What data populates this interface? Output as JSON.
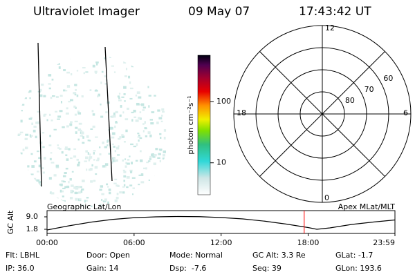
{
  "header": {
    "instrument": "Ultraviolet Imager",
    "date": "09 May 07",
    "time": "17:43:42 UT"
  },
  "colorbar": {
    "label": "photon cm⁻²s⁻¹",
    "scale": "log",
    "ylim": [
      3,
      575
    ],
    "yticks": [
      10,
      100
    ]
  },
  "polar": {
    "lat_range": [
      50,
      90
    ],
    "lat_rings": [
      60,
      70,
      80
    ],
    "lat_labels": [
      "60",
      "70",
      "80"
    ],
    "mlt_labels": [
      "12",
      "18",
      "6",
      "0"
    ]
  },
  "chart_data": {
    "type": "line",
    "title_left": "Geographic Lat/Lon",
    "title_right": "Apex MLat/MLT",
    "ylabel": "GC Alt",
    "x": [
      0,
      1.5,
      3,
      4.5,
      6,
      7.5,
      9,
      10.5,
      12,
      13.5,
      15,
      16.5,
      18,
      18.6,
      19.5,
      21,
      22.5,
      23.983
    ],
    "values": [
      1.4,
      3.8,
      5.9,
      7.5,
      8.5,
      9.0,
      9.2,
      9.1,
      8.6,
      7.8,
      6.5,
      4.8,
      2.8,
      1.8,
      2.6,
      4.6,
      6.0,
      7.2
    ],
    "color": "#000000",
    "xlim": [
      0,
      23.983
    ],
    "xticks": [
      {
        "value": 0,
        "label": "00:00"
      },
      {
        "value": 6,
        "label": "06:00"
      },
      {
        "value": 12,
        "label": "12:00"
      },
      {
        "value": 18,
        "label": "18:00"
      },
      {
        "value": 23.983,
        "label": "23:59"
      }
    ],
    "ylim": [
      -0.6,
      12.6
    ],
    "yticks": [
      1.8,
      {
        "value": 9,
        "label": "9.0"
      }
    ],
    "marker_x": 17.728,
    "marker_color": "#ff0000"
  },
  "footer": {
    "rows": [
      [
        "Flt: LBHL",
        "Door: Open",
        "Mode: Normal",
        "GC Alt: 3.3 Re",
        "GLat: -1.7"
      ],
      [
        "IP: 36.0",
        "Gain: 14",
        "Dsp:  -7.6",
        "Seq: 39",
        "GLon: 193.6"
      ]
    ]
  }
}
